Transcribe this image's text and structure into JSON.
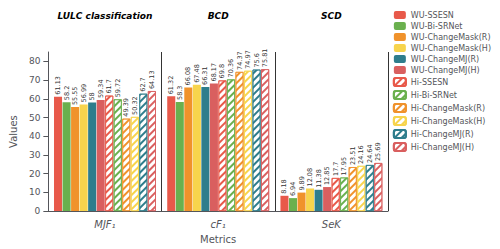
{
  "chart_data": {
    "type": "bar",
    "categories": [
      "MJF₁",
      "cF₁",
      "SeK"
    ],
    "annotations": [
      "LULC classification",
      "BCD",
      "SCD"
    ],
    "xlabel": "Metrics",
    "ylabel": "Values",
    "series": [
      {
        "name": "WU-SSESN",
        "color": "#E8594A",
        "values": [
          61.13,
          61.32,
          8.18
        ]
      },
      {
        "name": "WU-Bi-SRNet",
        "color": "#6AB04E",
        "values": [
          58.2,
          58.3,
          6.94
        ]
      },
      {
        "name": "WU-ChangeMask(R)",
        "color": "#F0922B",
        "values": [
          55.55,
          66.08,
          9.89
        ]
      },
      {
        "name": "WU-ChangeMask(H)",
        "color": "#F7D44C",
        "values": [
          56.99,
          67.48,
          12.08
        ]
      },
      {
        "name": "WU-ChangeMJ(R)",
        "color": "#2E7D8C",
        "values": [
          58.0,
          66.31,
          11.38
        ]
      },
      {
        "name": "WU-ChangeMJ(H)",
        "color": "#D95F5F",
        "values": [
          59.34,
          68.17,
          12.85
        ]
      },
      {
        "name": "Hi-SSESN",
        "color": "#E8594A",
        "marker": "hatch",
        "values": [
          61.7,
          69.8,
          17.7
        ]
      },
      {
        "name": "Hi-Bi-SRNet",
        "color": "#6AB04E",
        "marker": "hatch",
        "values": [
          59.72,
          70.36,
          17.95
        ]
      },
      {
        "name": "Hi-ChangeMask(R)",
        "color": "#F0922B",
        "marker": "hatch",
        "values": [
          49.39,
          74.37,
          23.51
        ]
      },
      {
        "name": "Hi-ChangeMask(H)",
        "color": "#F7D44C",
        "marker": "hatch",
        "values": [
          50.32,
          74.97,
          24.16
        ]
      },
      {
        "name": "Hi-ChangeMJ(R)",
        "color": "#2E7D8C",
        "marker": "hatch",
        "values": [
          62.7,
          75.6,
          24.64
        ]
      },
      {
        "name": "Hi-ChangeMJ(H)",
        "color": "#D95F5F",
        "marker": "hatch",
        "values": [
          64.13,
          75.81,
          25.69
        ]
      }
    ],
    "ylim": [
      0,
      85
    ],
    "yticks": [
      0,
      10,
      20,
      30,
      40,
      50,
      60,
      70,
      80
    ],
    "grid": false,
    "legend": "right",
    "data_labels": true
  }
}
